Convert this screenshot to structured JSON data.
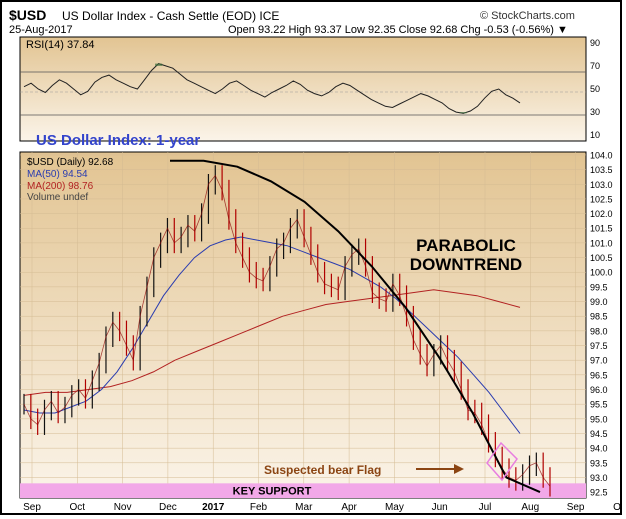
{
  "header": {
    "symbol": "$USD",
    "description": "US Dollar Index - Cash Settle (EOD) ICE",
    "date": "25-Aug-2017",
    "ohlc": "Open 93.22  High 93.37  Low 92.35  Close 92.68  Chg -0.53 (-0.56%) ▼",
    "brand": "© StockCharts.com"
  },
  "rsi": {
    "label": "RSI(14) 37.84",
    "value": 37.84,
    "levels": [
      "90",
      "70",
      "50",
      "30",
      "10"
    ],
    "series": [
      52,
      55,
      50,
      47,
      53,
      58,
      55,
      50,
      45,
      48,
      56,
      60,
      62,
      58,
      55,
      52,
      50,
      58,
      66,
      72,
      70,
      68,
      63,
      58,
      55,
      52,
      49,
      46,
      50,
      55,
      57,
      53,
      49,
      46,
      43,
      47,
      50,
      53,
      57,
      54,
      49,
      46,
      44,
      47,
      52,
      55,
      53,
      49,
      45,
      41,
      38,
      35,
      34,
      37,
      40,
      43,
      46,
      44,
      41,
      38,
      33,
      30,
      29,
      31,
      35,
      42,
      48,
      50,
      45,
      42,
      38
    ]
  },
  "overlay": {
    "title": "US Dollar Index: 1-year",
    "legend": [
      "$USD (Daily) 92.68",
      "MA(50) 94.54",
      "MA(200) 98.76",
      "Volume undef"
    ],
    "annotation_parabolic": [
      "PARABOLIC",
      "DOWNTREND"
    ],
    "annotation_flag": "Suspected bear Flag",
    "annotation_support": "KEY SUPPORT"
  },
  "colors": {
    "ma50": "#2a3cb0",
    "ma200": "#b22222",
    "price": "#8b0000",
    "support": "#f2a8e8",
    "flag_label": "#8b4513",
    "title": "#3344cc"
  },
  "chart_data": {
    "type": "line",
    "title": "US Dollar Index: 1-year",
    "xlabel": "",
    "ylabel": "",
    "x_ticks": [
      "Sep",
      "Oct",
      "Nov",
      "Dec",
      "2017",
      "Feb",
      "Mar",
      "Apr",
      "May",
      "Jun",
      "Jul",
      "Aug",
      "Sep",
      "Oct"
    ],
    "y_ticks": [
      92.5,
      93.0,
      93.5,
      94.0,
      94.5,
      95.0,
      95.5,
      96.0,
      96.5,
      97.0,
      97.5,
      98.0,
      98.5,
      99.0,
      99.5,
      100.0,
      100.5,
      101.0,
      101.5,
      102.0,
      102.5,
      103.0,
      103.5,
      104.0
    ],
    "ylim": [
      92.3,
      104.1
    ],
    "grid": true,
    "series": [
      {
        "name": "$USD (Daily)",
        "values": [
          95.5,
          95.0,
          94.8,
          95.3,
          95.6,
          95.2,
          95.4,
          95.8,
          96.0,
          95.7,
          96.3,
          96.9,
          97.8,
          98.3,
          98.0,
          97.5,
          97.0,
          98.5,
          99.5,
          100.5,
          101.0,
          101.5,
          101.0,
          101.2,
          101.6,
          101.4,
          102.0,
          103.0,
          103.3,
          102.8,
          101.8,
          101.0,
          100.5,
          100.0,
          99.8,
          99.7,
          100.2,
          100.8,
          101.0,
          101.5,
          101.8,
          101.2,
          100.6,
          100.0,
          99.6,
          99.5,
          99.4,
          100.2,
          100.6,
          100.8,
          100.2,
          99.3,
          99.1,
          99.0,
          99.6,
          99.2,
          98.5,
          97.7,
          97.2,
          96.8,
          97.2,
          97.5,
          97.0,
          96.6,
          96.0,
          95.3,
          95.2,
          94.8,
          94.2,
          93.7,
          93.3,
          93.0,
          92.9,
          93.1,
          93.4,
          93.5,
          93.0,
          92.7
        ]
      },
      {
        "name": "MA(50)",
        "values": [
          95.3,
          95.2,
          95.2,
          95.4,
          95.6,
          96.0,
          96.6,
          97.4,
          98.3,
          99.2,
          99.9,
          100.5,
          100.9,
          101.1,
          101.2,
          101.1,
          101.0,
          100.9,
          100.7,
          100.5,
          100.3,
          100.1,
          99.8,
          99.5,
          99.1,
          98.6,
          98.1,
          97.6,
          97.1,
          96.5,
          95.9,
          95.2,
          94.5
        ]
      },
      {
        "name": "MA(200)",
        "values": [
          95.8,
          95.9,
          95.9,
          96.0,
          96.1,
          96.3,
          96.6,
          97.0,
          97.3,
          97.6,
          97.9,
          98.2,
          98.5,
          98.7,
          98.9,
          99.0,
          99.1,
          99.2,
          99.3,
          99.4,
          99.3,
          99.2,
          99.0,
          98.8
        ]
      },
      {
        "name": "Parabolic trend curve",
        "values": [
          103.8,
          103.8,
          103.6,
          103.1,
          102.4,
          101.4,
          100.2,
          98.8,
          97.1,
          95.2,
          93.0,
          92.5
        ]
      }
    ],
    "key_support": [
      92.3,
      92.8
    ]
  }
}
